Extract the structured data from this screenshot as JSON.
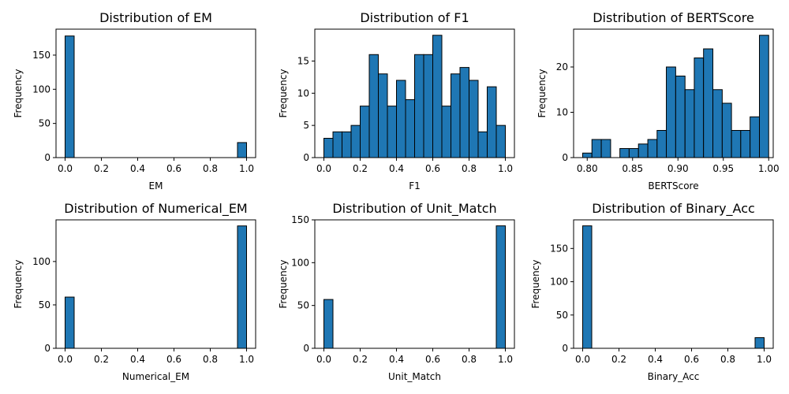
{
  "chart_data": [
    {
      "type": "histogram",
      "title": "Distribution of EM",
      "xlabel": "EM",
      "ylabel": "Frequency",
      "xlim": [
        -0.05,
        1.05
      ],
      "ylim": [
        0,
        188
      ],
      "xticks": [
        0.0,
        0.2,
        0.4,
        0.6,
        0.8,
        1.0
      ],
      "xtick_labels": [
        "0.0",
        "0.2",
        "0.4",
        "0.6",
        "0.8",
        "1.0"
      ],
      "yticks": [
        0,
        50,
        100,
        150
      ],
      "bins": [
        0.0,
        0.05,
        0.1,
        0.15,
        0.2,
        0.25,
        0.3,
        0.35,
        0.4,
        0.45,
        0.5,
        0.55,
        0.6,
        0.65,
        0.7,
        0.75,
        0.8,
        0.85,
        0.9,
        0.95,
        1.0
      ],
      "counts": [
        178,
        0,
        0,
        0,
        0,
        0,
        0,
        0,
        0,
        0,
        0,
        0,
        0,
        0,
        0,
        0,
        0,
        0,
        0,
        22
      ]
    },
    {
      "type": "histogram",
      "title": "Distribution of F1",
      "xlabel": "F1",
      "ylabel": "Frequency",
      "xlim": [
        -0.05,
        1.05
      ],
      "ylim": [
        0,
        19.95
      ],
      "xticks": [
        0.0,
        0.2,
        0.4,
        0.6,
        0.8,
        1.0
      ],
      "xtick_labels": [
        "0.0",
        "0.2",
        "0.4",
        "0.6",
        "0.8",
        "1.0"
      ],
      "yticks": [
        0,
        5,
        10,
        15
      ],
      "bins": [
        0.0,
        0.05,
        0.1,
        0.15,
        0.2,
        0.25,
        0.3,
        0.35,
        0.4,
        0.45,
        0.5,
        0.55,
        0.6,
        0.65,
        0.7,
        0.75,
        0.8,
        0.85,
        0.9,
        0.95,
        1.0
      ],
      "counts": [
        3,
        4,
        4,
        5,
        8,
        16,
        13,
        8,
        12,
        9,
        16,
        16,
        19,
        8,
        13,
        14,
        12,
        4,
        11,
        5
      ]
    },
    {
      "type": "histogram",
      "title": "Distribution of BERTScore",
      "xlabel": "BERTScore",
      "ylabel": "Frequency",
      "xlim": [
        0.785,
        1.005
      ],
      "ylim": [
        0,
        28.35
      ],
      "xticks": [
        0.8,
        0.85,
        0.9,
        0.95,
        1.0
      ],
      "xtick_labels": [
        "0.80",
        "0.85",
        "0.90",
        "0.95",
        "1.00"
      ],
      "yticks": [
        0,
        10,
        20
      ],
      "bins": [
        0.795,
        0.8052,
        0.8155,
        0.8258,
        0.836,
        0.8462,
        0.8565,
        0.8668,
        0.877,
        0.8872,
        0.8975,
        0.9078,
        0.918,
        0.9282,
        0.9385,
        0.9488,
        0.959,
        0.9692,
        0.9795,
        0.9898,
        1.0
      ],
      "counts": [
        1,
        4,
        4,
        0,
        2,
        2,
        3,
        4,
        6,
        20,
        18,
        15,
        22,
        24,
        15,
        12,
        6,
        6,
        9,
        27
      ]
    },
    {
      "type": "histogram",
      "title": "Distribution of Numerical_EM",
      "xlabel": "Numerical_EM",
      "ylabel": "Frequency",
      "xlim": [
        -0.05,
        1.05
      ],
      "ylim": [
        0,
        148
      ],
      "xticks": [
        0.0,
        0.2,
        0.4,
        0.6,
        0.8,
        1.0
      ],
      "xtick_labels": [
        "0.0",
        "0.2",
        "0.4",
        "0.6",
        "0.8",
        "1.0"
      ],
      "yticks": [
        0,
        50,
        100
      ],
      "bins": [
        0.0,
        0.05,
        0.1,
        0.15,
        0.2,
        0.25,
        0.3,
        0.35,
        0.4,
        0.45,
        0.5,
        0.55,
        0.6,
        0.65,
        0.7,
        0.75,
        0.8,
        0.85,
        0.9,
        0.95,
        1.0
      ],
      "counts": [
        59,
        0,
        0,
        0,
        0,
        0,
        0,
        0,
        0,
        0,
        0,
        0,
        0,
        0,
        0,
        0,
        0,
        0,
        0,
        141
      ]
    },
    {
      "type": "histogram",
      "title": "Distribution of Unit_Match",
      "xlabel": "Unit_Match",
      "ylabel": "Frequency",
      "xlim": [
        -0.05,
        1.05
      ],
      "ylim": [
        0,
        150
      ],
      "xticks": [
        0.0,
        0.2,
        0.4,
        0.6,
        0.8,
        1.0
      ],
      "xtick_labels": [
        "0.0",
        "0.2",
        "0.4",
        "0.6",
        "0.8",
        "1.0"
      ],
      "yticks": [
        0,
        50,
        100,
        150
      ],
      "bins": [
        0.0,
        0.05,
        0.1,
        0.15,
        0.2,
        0.25,
        0.3,
        0.35,
        0.4,
        0.45,
        0.5,
        0.55,
        0.6,
        0.65,
        0.7,
        0.75,
        0.8,
        0.85,
        0.9,
        0.95,
        1.0
      ],
      "counts": [
        57,
        0,
        0,
        0,
        0,
        0,
        0,
        0,
        0,
        0,
        0,
        0,
        0,
        0,
        0,
        0,
        0,
        0,
        0,
        143
      ]
    },
    {
      "type": "histogram",
      "title": "Distribution of Binary_Acc",
      "xlabel": "Binary_Acc",
      "ylabel": "Frequency",
      "xlim": [
        -0.05,
        1.05
      ],
      "ylim": [
        0,
        193
      ],
      "xticks": [
        0.0,
        0.2,
        0.4,
        0.6,
        0.8,
        1.0
      ],
      "xtick_labels": [
        "0.0",
        "0.2",
        "0.4",
        "0.6",
        "0.8",
        "1.0"
      ],
      "yticks": [
        0,
        50,
        100,
        150
      ],
      "bins": [
        0.0,
        0.05,
        0.1,
        0.15,
        0.2,
        0.25,
        0.3,
        0.35,
        0.4,
        0.45,
        0.5,
        0.55,
        0.6,
        0.65,
        0.7,
        0.75,
        0.8,
        0.85,
        0.9,
        0.95,
        1.0
      ],
      "counts": [
        184,
        0,
        0,
        0,
        0,
        0,
        0,
        0,
        0,
        0,
        0,
        0,
        0,
        0,
        0,
        0,
        0,
        0,
        0,
        16
      ]
    }
  ],
  "colors": {
    "bar_fill": "#1f77b4",
    "bar_edge": "#000000"
  }
}
